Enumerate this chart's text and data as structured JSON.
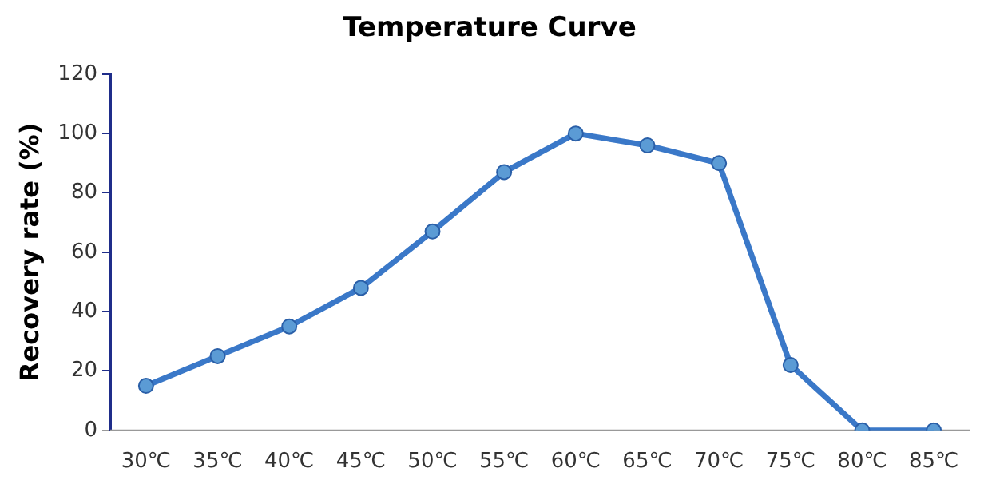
{
  "chart_data": {
    "type": "line",
    "title": "Temperature Curve",
    "ylabel": "Recovery rate (%)",
    "categories": [
      "30℃",
      "35℃",
      "40℃",
      "45℃",
      "50℃",
      "55℃",
      "60℃",
      "65℃",
      "70℃",
      "75℃",
      "80℃",
      "85℃"
    ],
    "series": [
      {
        "color": "#3a78c8",
        "values": [
          15,
          25,
          35,
          48,
          67,
          87,
          100,
          96,
          90,
          22,
          0,
          0
        ]
      }
    ],
    "ylim": [
      0,
      120
    ],
    "yticks": [
      0,
      20,
      40,
      60,
      80,
      100,
      120
    ],
    "grid": false,
    "legend": false,
    "marker": "circle",
    "line_style": "solid"
  }
}
